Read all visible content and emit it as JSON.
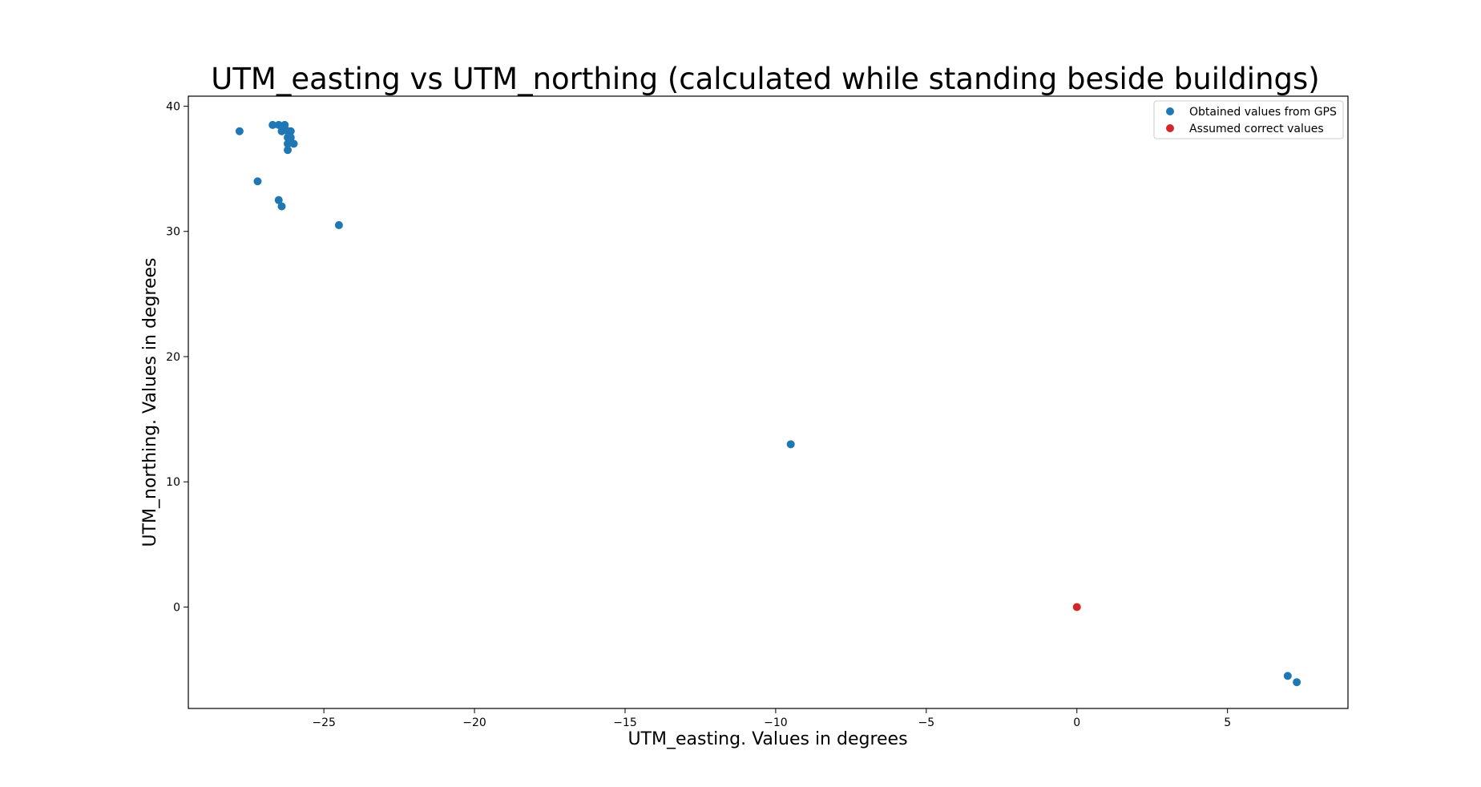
{
  "chart_data": {
    "type": "scatter",
    "title": "UTM_easting vs UTM_northing (calculated while standing beside buildings)",
    "xlabel": "UTM_easting. Values in degrees",
    "ylabel": "UTM_northing. Values in degrees",
    "xlim": [
      -29.5,
      9.0
    ],
    "ylim": [
      -8.1,
      40.8
    ],
    "x_ticks": [
      -25,
      -20,
      -15,
      -10,
      -5,
      0,
      5
    ],
    "x_tick_labels": [
      "−25",
      "−20",
      "−15",
      "−10",
      "−5",
      "0",
      "5"
    ],
    "y_ticks": [
      0,
      10,
      20,
      30,
      40
    ],
    "y_tick_labels": [
      "0",
      "10",
      "20",
      "30",
      "40"
    ],
    "grid": false,
    "legend_position": "top-right",
    "series": [
      {
        "name": "Obtained values from GPS",
        "color": "#1f77b4",
        "points": [
          [
            -27.8,
            38.0
          ],
          [
            -27.2,
            34.0
          ],
          [
            -26.7,
            38.5
          ],
          [
            -26.5,
            38.5
          ],
          [
            -26.4,
            38.0
          ],
          [
            -26.3,
            38.5
          ],
          [
            -26.3,
            38.2
          ],
          [
            -26.2,
            38.0
          ],
          [
            -26.2,
            37.5
          ],
          [
            -26.2,
            37.0
          ],
          [
            -26.1,
            37.5
          ],
          [
            -26.1,
            38.0
          ],
          [
            -26.0,
            37.0
          ],
          [
            -26.2,
            36.5
          ],
          [
            -26.5,
            32.5
          ],
          [
            -26.4,
            32.0
          ],
          [
            -24.5,
            30.5
          ],
          [
            -9.5,
            13.0
          ],
          [
            7.0,
            -5.5
          ],
          [
            7.3,
            -6.0
          ]
        ]
      },
      {
        "name": "Assumed correct values",
        "color": "#d62728",
        "points": [
          [
            0.0,
            0.0
          ]
        ]
      }
    ]
  }
}
